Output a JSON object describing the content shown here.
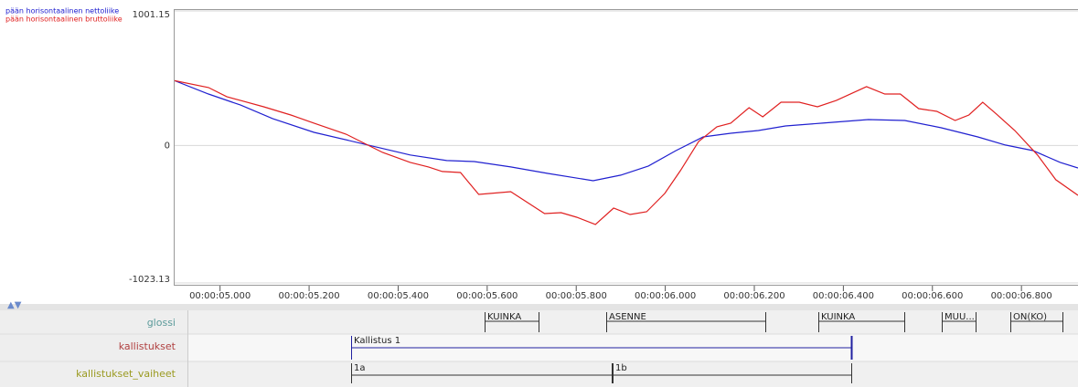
{
  "chart_data": {
    "type": "line",
    "ylim": [
      -1023.13,
      1001.15
    ],
    "yticks": [
      1001.15,
      0,
      -1023.13
    ],
    "xlim": [
      4.898,
      6.927
    ],
    "xticks": [
      {
        "value": 5.0,
        "label": "00:00:05.000"
      },
      {
        "value": 5.2,
        "label": "00:00:05.200"
      },
      {
        "value": 5.4,
        "label": "00:00:05.400"
      },
      {
        "value": 5.6,
        "label": "00:00:05.600"
      },
      {
        "value": 5.8,
        "label": "00:00:05.800"
      },
      {
        "value": 6.0,
        "label": "00:00:06.000"
      },
      {
        "value": 6.2,
        "label": "00:00:06.200"
      },
      {
        "value": 6.4,
        "label": "00:00:06.400"
      },
      {
        "value": 6.6,
        "label": "00:00:06.600"
      },
      {
        "value": 6.8,
        "label": "00:00:06.800"
      }
    ],
    "grid": true,
    "series": [
      {
        "name": "pään horisontaalinen nettoliike",
        "color": "#2020d0",
        "x": [
          4.898,
          4.974,
          5.046,
          5.118,
          5.211,
          5.324,
          5.427,
          5.509,
          5.571,
          5.653,
          5.736,
          5.838,
          5.9,
          5.962,
          6.024,
          6.085,
          6.147,
          6.209,
          6.27,
          6.353,
          6.456,
          6.538,
          6.62,
          6.702,
          6.764,
          6.826,
          6.887,
          6.927
        ],
        "values": [
          482,
          383,
          301,
          200,
          98,
          10,
          -71,
          -112,
          -120,
          -160,
          -208,
          -262,
          -221,
          -153,
          -38,
          64,
          91,
          111,
          145,
          166,
          193,
          186,
          132,
          64,
          3,
          -38,
          -126,
          -167
        ]
      },
      {
        "name": "pään horisontaalinen bruttoliike",
        "color": "#e02020",
        "x": [
          4.898,
          4.974,
          5.015,
          5.046,
          5.098,
          5.159,
          5.211,
          5.283,
          5.324,
          5.365,
          5.427,
          5.468,
          5.499,
          5.54,
          5.581,
          5.653,
          5.729,
          5.766,
          5.801,
          5.843,
          5.884,
          5.921,
          5.958,
          5.999,
          6.034,
          6.075,
          6.116,
          6.147,
          6.188,
          6.219,
          6.26,
          6.301,
          6.342,
          6.384,
          6.452,
          6.493,
          6.528,
          6.569,
          6.61,
          6.651,
          6.682,
          6.713,
          6.744,
          6.785,
          6.836,
          6.877,
          6.927
        ],
        "values": [
          482,
          431,
          363,
          335,
          288,
          227,
          166,
          84,
          16,
          -52,
          -126,
          -160,
          -194,
          -201,
          -364,
          -344,
          -507,
          -500,
          -534,
          -588,
          -466,
          -514,
          -493,
          -357,
          -187,
          30,
          139,
          166,
          281,
          213,
          322,
          322,
          288,
          335,
          438,
          383,
          383,
          274,
          254,
          186,
          227,
          322,
          233,
          111,
          -71,
          -255,
          -371
        ]
      }
    ]
  },
  "tiers": [
    {
      "name": "glossi",
      "annotations": [
        "KUINKA",
        "ASENNE",
        "KUINKA",
        "MUU...",
        "ON(KO)"
      ]
    },
    {
      "name": "kallistukset",
      "annotations": [
        "Kallistus 1"
      ]
    },
    {
      "name": "kallistukset_vaiheet",
      "annotations": [
        "1a",
        "1b"
      ]
    }
  ]
}
